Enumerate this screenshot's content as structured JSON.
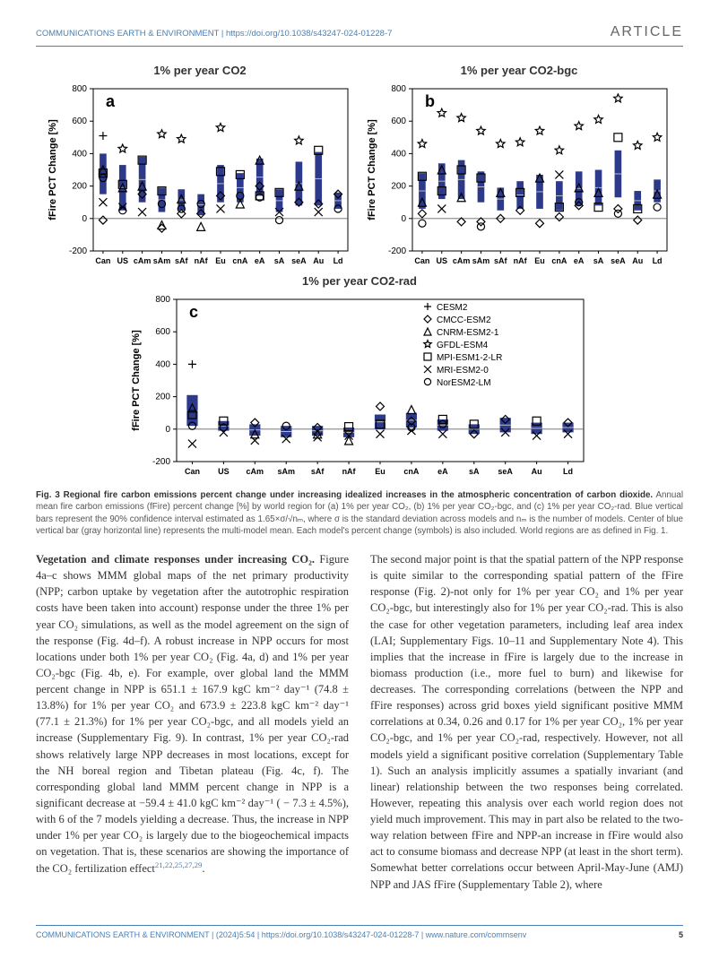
{
  "header": {
    "journal": "COMMUNICATIONS EARTH & ENVIRONMENT | https://doi.org/10.1038/s43247-024-01228-7",
    "article_label": "ARTICLE"
  },
  "figure": {
    "panel_titles": {
      "a": "1% per year CO2",
      "b": "1% per year CO2-bgc",
      "c": "1% per year CO2-rad"
    },
    "ylabel": "fFire PCT Change [%]",
    "ylim": [
      -200,
      800
    ],
    "yticks": [
      -200,
      0,
      200,
      400,
      600,
      800
    ],
    "categories": [
      "Can",
      "US",
      "cAm",
      "sAm",
      "sAf",
      "nAf",
      "Eu",
      "cnA",
      "eA",
      "sA",
      "seA",
      "Au",
      "Ld"
    ],
    "bar_color": "#2d3a8c",
    "grid_color": "#888888",
    "zero_line_color": "#666666",
    "legend": [
      {
        "symbol": "plus",
        "label": "CESM2"
      },
      {
        "symbol": "diamond",
        "label": "CMCC-ESM2"
      },
      {
        "symbol": "triangle",
        "label": "CNRM-ESM2-1"
      },
      {
        "symbol": "star",
        "label": "GFDL-ESM4"
      },
      {
        "symbol": "square",
        "label": "MPI-ESM1-2-LR"
      },
      {
        "symbol": "x",
        "label": "MRI-ESM2-0"
      },
      {
        "symbol": "circle",
        "label": "NorESM2-LM"
      }
    ],
    "panel_a": {
      "label": "a",
      "bars": [
        {
          "low": 150,
          "high": 400
        },
        {
          "low": 50,
          "high": 330
        },
        {
          "low": 100,
          "high": 380
        },
        {
          "low": 40,
          "high": 190
        },
        {
          "low": 50,
          "high": 180
        },
        {
          "low": 20,
          "high": 150
        },
        {
          "low": 100,
          "high": 330
        },
        {
          "low": 100,
          "high": 280
        },
        {
          "low": 140,
          "high": 370
        },
        {
          "low": 40,
          "high": 180
        },
        {
          "low": 80,
          "high": 350
        },
        {
          "low": 80,
          "high": 410
        },
        {
          "low": 60,
          "high": 160
        }
      ],
      "points": [
        {
          "x": 0,
          "y": 510,
          "s": "plus"
        },
        {
          "x": 0,
          "y": 300,
          "s": "triangle"
        },
        {
          "x": 0,
          "y": 280,
          "s": "square"
        },
        {
          "x": 0,
          "y": 250,
          "s": "circle"
        },
        {
          "x": 0,
          "y": 100,
          "s": "x"
        },
        {
          "x": 0,
          "y": -10,
          "s": "diamond"
        },
        {
          "x": 1,
          "y": 430,
          "s": "star"
        },
        {
          "x": 1,
          "y": 190,
          "s": "triangle"
        },
        {
          "x": 1,
          "y": 70,
          "s": "x"
        },
        {
          "x": 1,
          "y": 210,
          "s": "square"
        },
        {
          "x": 1,
          "y": 50,
          "s": "circle"
        },
        {
          "x": 2,
          "y": 360,
          "s": "square"
        },
        {
          "x": 2,
          "y": 150,
          "s": "diamond"
        },
        {
          "x": 2,
          "y": 40,
          "s": "x"
        },
        {
          "x": 2,
          "y": 200,
          "s": "triangle"
        },
        {
          "x": 3,
          "y": 520,
          "s": "star"
        },
        {
          "x": 3,
          "y": 170,
          "s": "square"
        },
        {
          "x": 3,
          "y": 90,
          "s": "circle"
        },
        {
          "x": 3,
          "y": -60,
          "s": "diamond"
        },
        {
          "x": 3,
          "y": -40,
          "s": "triangle"
        },
        {
          "x": 4,
          "y": 490,
          "s": "star"
        },
        {
          "x": 4,
          "y": 120,
          "s": "triangle"
        },
        {
          "x": 4,
          "y": 60,
          "s": "circle"
        },
        {
          "x": 4,
          "y": 30,
          "s": "diamond"
        },
        {
          "x": 5,
          "y": 90,
          "s": "circle"
        },
        {
          "x": 5,
          "y": -50,
          "s": "triangle"
        },
        {
          "x": 5,
          "y": 30,
          "s": "diamond"
        },
        {
          "x": 6,
          "y": 560,
          "s": "star"
        },
        {
          "x": 6,
          "y": 290,
          "s": "square"
        },
        {
          "x": 6,
          "y": 140,
          "s": "diamond"
        },
        {
          "x": 6,
          "y": 60,
          "s": "x"
        },
        {
          "x": 7,
          "y": 270,
          "s": "square"
        },
        {
          "x": 7,
          "y": 140,
          "s": "circle"
        },
        {
          "x": 7,
          "y": 90,
          "s": "triangle"
        },
        {
          "x": 8,
          "y": 360,
          "s": "triangle"
        },
        {
          "x": 8,
          "y": 200,
          "s": "diamond"
        },
        {
          "x": 8,
          "y": 130,
          "s": "circle"
        },
        {
          "x": 8,
          "y": 140,
          "s": "square"
        },
        {
          "x": 9,
          "y": 160,
          "s": "square"
        },
        {
          "x": 9,
          "y": 40,
          "s": "x"
        },
        {
          "x": 9,
          "y": -10,
          "s": "circle"
        },
        {
          "x": 10,
          "y": 480,
          "s": "star"
        },
        {
          "x": 10,
          "y": 200,
          "s": "triangle"
        },
        {
          "x": 10,
          "y": 100,
          "s": "diamond"
        },
        {
          "x": 11,
          "y": 420,
          "s": "square"
        },
        {
          "x": 11,
          "y": 90,
          "s": "diamond"
        },
        {
          "x": 11,
          "y": 40,
          "s": "x"
        },
        {
          "x": 12,
          "y": 150,
          "s": "diamond"
        },
        {
          "x": 12,
          "y": 60,
          "s": "circle"
        }
      ]
    },
    "panel_b": {
      "label": "b",
      "bars": [
        {
          "low": 60,
          "high": 280
        },
        {
          "low": 120,
          "high": 340
        },
        {
          "low": 120,
          "high": 360
        },
        {
          "low": 100,
          "high": 290
        },
        {
          "low": 50,
          "high": 190
        },
        {
          "low": 60,
          "high": 230
        },
        {
          "low": 60,
          "high": 270
        },
        {
          "low": 50,
          "high": 230
        },
        {
          "low": 80,
          "high": 290
        },
        {
          "low": 80,
          "high": 300
        },
        {
          "low": 130,
          "high": 420
        },
        {
          "low": 50,
          "high": 170
        },
        {
          "low": 100,
          "high": 240
        }
      ],
      "points": [
        {
          "x": 0,
          "y": 460,
          "s": "star"
        },
        {
          "x": 0,
          "y": 260,
          "s": "square"
        },
        {
          "x": 0,
          "y": 100,
          "s": "triangle"
        },
        {
          "x": 0,
          "y": 30,
          "s": "diamond"
        },
        {
          "x": 0,
          "y": -30,
          "s": "circle"
        },
        {
          "x": 1,
          "y": 650,
          "s": "star"
        },
        {
          "x": 1,
          "y": 300,
          "s": "triangle"
        },
        {
          "x": 1,
          "y": 170,
          "s": "square"
        },
        {
          "x": 1,
          "y": 60,
          "s": "x"
        },
        {
          "x": 2,
          "y": 620,
          "s": "star"
        },
        {
          "x": 2,
          "y": 300,
          "s": "square"
        },
        {
          "x": 2,
          "y": 130,
          "s": "triangle"
        },
        {
          "x": 2,
          "y": -20,
          "s": "diamond"
        },
        {
          "x": 3,
          "y": 540,
          "s": "star"
        },
        {
          "x": 3,
          "y": 250,
          "s": "square"
        },
        {
          "x": 3,
          "y": -20,
          "s": "diamond"
        },
        {
          "x": 3,
          "y": -50,
          "s": "circle"
        },
        {
          "x": 4,
          "y": 460,
          "s": "star"
        },
        {
          "x": 4,
          "y": 160,
          "s": "triangle"
        },
        {
          "x": 4,
          "y": 0,
          "s": "diamond"
        },
        {
          "x": 5,
          "y": 470,
          "s": "star"
        },
        {
          "x": 5,
          "y": 160,
          "s": "square"
        },
        {
          "x": 5,
          "y": 50,
          "s": "diamond"
        },
        {
          "x": 6,
          "y": 540,
          "s": "star"
        },
        {
          "x": 6,
          "y": 250,
          "s": "triangle"
        },
        {
          "x": 6,
          "y": -30,
          "s": "diamond"
        },
        {
          "x": 7,
          "y": 420,
          "s": "star"
        },
        {
          "x": 7,
          "y": 270,
          "s": "x"
        },
        {
          "x": 7,
          "y": 70,
          "s": "square"
        },
        {
          "x": 7,
          "y": 10,
          "s": "diamond"
        },
        {
          "x": 8,
          "y": 570,
          "s": "star"
        },
        {
          "x": 8,
          "y": 190,
          "s": "triangle"
        },
        {
          "x": 8,
          "y": 80,
          "s": "diamond"
        },
        {
          "x": 8,
          "y": 100,
          "s": "circle"
        },
        {
          "x": 9,
          "y": 610,
          "s": "star"
        },
        {
          "x": 9,
          "y": 160,
          "s": "triangle"
        },
        {
          "x": 9,
          "y": 70,
          "s": "square"
        },
        {
          "x": 10,
          "y": 740,
          "s": "star"
        },
        {
          "x": 10,
          "y": 500,
          "s": "square"
        },
        {
          "x": 10,
          "y": 60,
          "s": "diamond"
        },
        {
          "x": 10,
          "y": 30,
          "s": "circle"
        },
        {
          "x": 11,
          "y": 450,
          "s": "star"
        },
        {
          "x": 11,
          "y": 60,
          "s": "square"
        },
        {
          "x": 11,
          "y": -10,
          "s": "diamond"
        },
        {
          "x": 12,
          "y": 500,
          "s": "star"
        },
        {
          "x": 12,
          "y": 150,
          "s": "triangle"
        },
        {
          "x": 12,
          "y": 70,
          "s": "circle"
        }
      ]
    },
    "panel_c": {
      "label": "c",
      "bars": [
        {
          "low": 20,
          "high": 210
        },
        {
          "low": -10,
          "high": 50
        },
        {
          "low": -40,
          "high": 30
        },
        {
          "low": -50,
          "high": 20
        },
        {
          "low": -40,
          "high": 20
        },
        {
          "low": -50,
          "high": 10
        },
        {
          "low": 0,
          "high": 90
        },
        {
          "low": 10,
          "high": 100
        },
        {
          "low": -10,
          "high": 60
        },
        {
          "low": -30,
          "high": 30
        },
        {
          "low": -20,
          "high": 70
        },
        {
          "low": -30,
          "high": 40
        },
        {
          "low": -20,
          "high": 40
        }
      ],
      "points": [
        {
          "x": 0,
          "y": 400,
          "s": "plus"
        },
        {
          "x": 0,
          "y": 130,
          "s": "triangle"
        },
        {
          "x": 0,
          "y": 90,
          "s": "square"
        },
        {
          "x": 0,
          "y": 20,
          "s": "circle"
        },
        {
          "x": 0,
          "y": -90,
          "s": "x"
        },
        {
          "x": 1,
          "y": 50,
          "s": "square"
        },
        {
          "x": 1,
          "y": -20,
          "s": "x"
        },
        {
          "x": 1,
          "y": 10,
          "s": "circle"
        },
        {
          "x": 2,
          "y": -70,
          "s": "x"
        },
        {
          "x": 2,
          "y": 40,
          "s": "diamond"
        },
        {
          "x": 2,
          "y": -30,
          "s": "triangle"
        },
        {
          "x": 3,
          "y": -60,
          "s": "x"
        },
        {
          "x": 3,
          "y": 20,
          "s": "circle"
        },
        {
          "x": 4,
          "y": 10,
          "s": "diamond"
        },
        {
          "x": 4,
          "y": -30,
          "s": "triangle"
        },
        {
          "x": 4,
          "y": -50,
          "s": "x"
        },
        {
          "x": 5,
          "y": 15,
          "s": "square"
        },
        {
          "x": 5,
          "y": -40,
          "s": "x"
        },
        {
          "x": 5,
          "y": -70,
          "s": "triangle"
        },
        {
          "x": 6,
          "y": 140,
          "s": "diamond"
        },
        {
          "x": 6,
          "y": 30,
          "s": "square"
        },
        {
          "x": 6,
          "y": -30,
          "s": "x"
        },
        {
          "x": 7,
          "y": 120,
          "s": "triangle"
        },
        {
          "x": 7,
          "y": 50,
          "s": "diamond"
        },
        {
          "x": 7,
          "y": 10,
          "s": "circle"
        },
        {
          "x": 7,
          "y": -10,
          "s": "x"
        },
        {
          "x": 8,
          "y": 60,
          "s": "square"
        },
        {
          "x": 8,
          "y": -30,
          "s": "x"
        },
        {
          "x": 8,
          "y": 30,
          "s": "circle"
        },
        {
          "x": 9,
          "y": -30,
          "s": "diamond"
        },
        {
          "x": 9,
          "y": 30,
          "s": "square"
        },
        {
          "x": 10,
          "y": -20,
          "s": "x"
        },
        {
          "x": 10,
          "y": 60,
          "s": "diamond"
        },
        {
          "x": 11,
          "y": 50,
          "s": "square"
        },
        {
          "x": 11,
          "y": -40,
          "s": "x"
        },
        {
          "x": 12,
          "y": 40,
          "s": "diamond"
        },
        {
          "x": 12,
          "y": -30,
          "s": "x"
        }
      ]
    },
    "caption_bold": "Fig. 3 Regional fire carbon emissions percent change under increasing idealized increases in the atmospheric concentration of carbon dioxide.",
    "caption_rest": " Annual mean fire carbon emissions (fFire) percent change [%] by world region for (a) 1% per year CO₂, (b) 1% per year CO₂-bgc, and (c) 1% per year CO₂-rad. Blue vertical bars represent the 90% confidence interval estimated as 1.65×σ/√nₘ, where σ is the standard deviation across models and nₘ is the number of models. Center of blue vertical bar (gray horizontal line) represents the multi-model mean. Each model's percent change (symbols) is also included. World regions are as defined in Fig. 1."
  },
  "body": {
    "left_heading": "Vegetation and climate responses under increasing CO₂.",
    "left_text": " Figure 4a–c shows MMM global maps of the net primary productivity (NPP; carbon uptake by vegetation after the autotrophic respiration costs have been taken into account) response under the three 1% per year CO₂ simulations, as well as the model agreement on the sign of the response (Fig. 4d–f). A robust increase in NPP occurs for most locations under both 1% per year CO₂ (Fig. 4a, d) and 1% per year CO₂-bgc (Fig. 4b, e). For example, over global land the MMM percent change in NPP is 651.1 ± 167.9 kgC km⁻² day⁻¹ (74.8 ± 13.8%) for 1% per year CO₂ and 673.9 ± 223.8 kgC km⁻² day⁻¹ (77.1 ± 21.3%) for 1% per year CO₂-bgc, and all models yield an increase (Supplementary Fig. 9). In contrast, 1% per year CO₂-rad shows relatively large NPP decreases in most locations, except for the NH boreal region and Tibetan plateau (Fig. 4c, f). The corresponding global land MMM percent change in NPP is a significant decrease at −59.4 ± 41.0 kgC km⁻² day⁻¹ ( − 7.3 ± 4.5%), with 6 of the 7 models yielding a decrease. Thus, the increase in NPP under 1% per year CO₂ is largely due to the biogeochemical impacts on vegetation. That is, these scenarios are showing the importance of the CO₂ fertilization effect",
    "left_refs": "21,22,25,27,29",
    "right_text": "The second major point is that the spatial pattern of the NPP response is quite similar to the corresponding spatial pattern of the fFire response (Fig. 2)-not only for 1% per year CO₂ and 1% per year CO₂-bgc, but interestingly also for 1% per year CO₂-rad. This is also the case for other vegetation parameters, including leaf area index (LAI; Supplementary Figs. 10–11 and Supplementary Note 4). This implies that the increase in fFire is largely due to the increase in biomass production (i.e., more fuel to burn) and likewise for decreases. The corresponding correlations (between the NPP and fFire responses) across grid boxes yield significant positive MMM correlations at 0.34, 0.26 and 0.17 for 1% per year CO₂, 1% per year CO₂-bgc, and 1% per year CO₂-rad, respectively. However, not all models yield a significant positive correlation (Supplementary Table 1). Such an analysis implicitly assumes a spatially invariant (and linear) relationship between the two responses being correlated. However, repeating this analysis over each world region does not yield much improvement. This may in part also be related to the two-way relation between fFire and NPP-an increase in fFire would also act to consume biomass and decrease NPP (at least in the short term). Somewhat better correlations occur between April-May-June (AMJ) NPP and JAS fFire (Supplementary Table 2), where"
  },
  "footer": {
    "left": "COMMUNICATIONS EARTH & ENVIRONMENT | (2024)5:54 | https://doi.org/10.1038/s43247-024-01228-7 | www.nature.com/commsenv",
    "page": "5"
  }
}
